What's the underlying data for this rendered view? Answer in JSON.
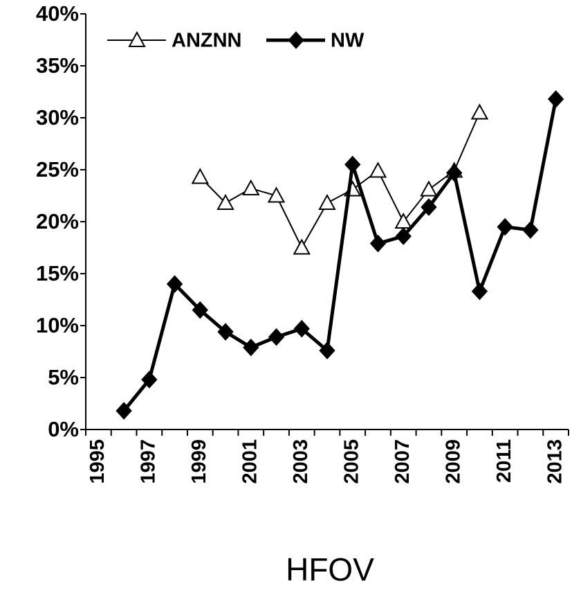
{
  "chart_data": {
    "type": "line",
    "x_label": "HFOV",
    "categories": [
      "1995",
      null,
      "1997",
      null,
      "1999",
      null,
      "2001",
      null,
      "2003",
      null,
      "2005",
      null,
      "2007",
      null,
      "2009",
      null,
      "2011",
      null,
      "2013"
    ],
    "series": [
      {
        "name": "ANZNN",
        "color": "#000000",
        "marker": "triangle",
        "values": [
          null,
          null,
          null,
          null,
          24.3,
          21.8,
          23.2,
          22.5,
          17.5,
          21.8,
          23.1,
          24.9,
          20.0,
          23.1,
          24.9,
          30.5,
          null,
          null,
          null
        ]
      },
      {
        "name": "NW",
        "color": "#000000",
        "marker": "diamond",
        "values": [
          null,
          1.8,
          4.8,
          14.0,
          11.5,
          9.4,
          7.9,
          8.9,
          9.7,
          7.6,
          25.5,
          17.9,
          18.6,
          21.4,
          24.7,
          13.3,
          19.5,
          19.2,
          31.8
        ]
      }
    ],
    "ylim": [
      0,
      40
    ],
    "yticks": [
      {
        "value": 0,
        "label": "0%"
      },
      {
        "value": 5,
        "label": "5%"
      },
      {
        "value": 10,
        "label": "10%"
      },
      {
        "value": 15,
        "label": "15%"
      },
      {
        "value": 20,
        "label": "20%"
      },
      {
        "value": 25,
        "label": "25%"
      },
      {
        "value": 30,
        "label": "30%"
      },
      {
        "value": 35,
        "label": "35%"
      },
      {
        "value": 40,
        "label": "40%"
      }
    ],
    "legend": "top-left"
  }
}
